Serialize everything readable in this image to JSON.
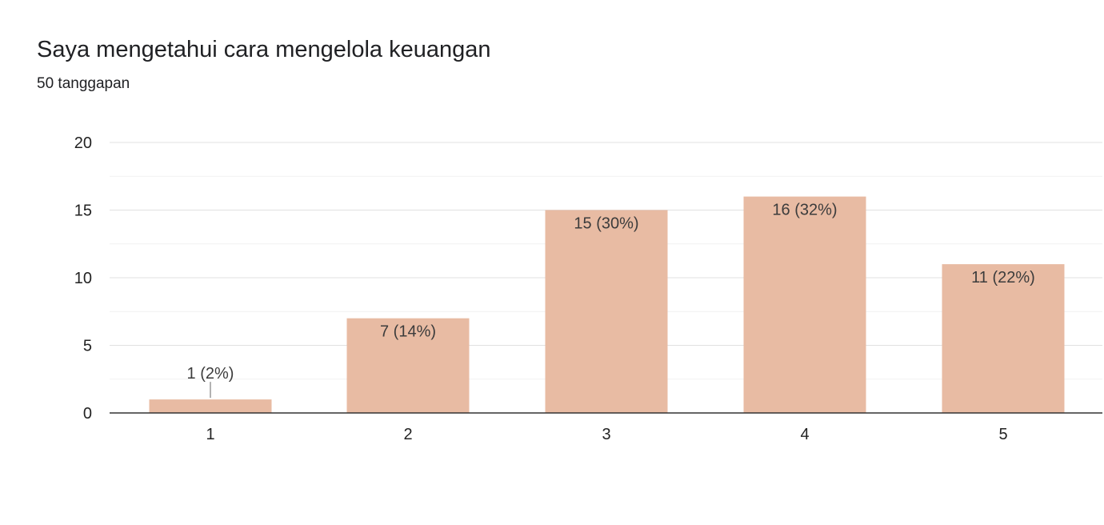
{
  "header": {
    "title": "Saya mengetahui cara mengelola keuangan",
    "subtitle": "50 tanggapan"
  },
  "colors": {
    "bar": "#e8bba3",
    "bar_label": "#3c3c3c",
    "axis": "#333333",
    "grid_major": "#e0e0e0",
    "grid_minor": "#f1f1f1",
    "tick": "#222222"
  },
  "chart_data": {
    "type": "bar",
    "title": "Saya mengetahui cara mengelola keuangan",
    "subtitle": "50 tanggapan",
    "categories": [
      "1",
      "2",
      "3",
      "4",
      "5"
    ],
    "values": [
      1,
      7,
      15,
      16,
      11
    ],
    "data_labels": [
      "1 (2%)",
      "7 (14%)",
      "15 (30%)",
      "16 (32%)",
      "11 (22%)"
    ],
    "xlabel": "",
    "ylabel": "",
    "ylim": [
      0,
      20
    ],
    "yticks": [
      0,
      5,
      10,
      15,
      20
    ],
    "grid": true,
    "legend": "none"
  }
}
